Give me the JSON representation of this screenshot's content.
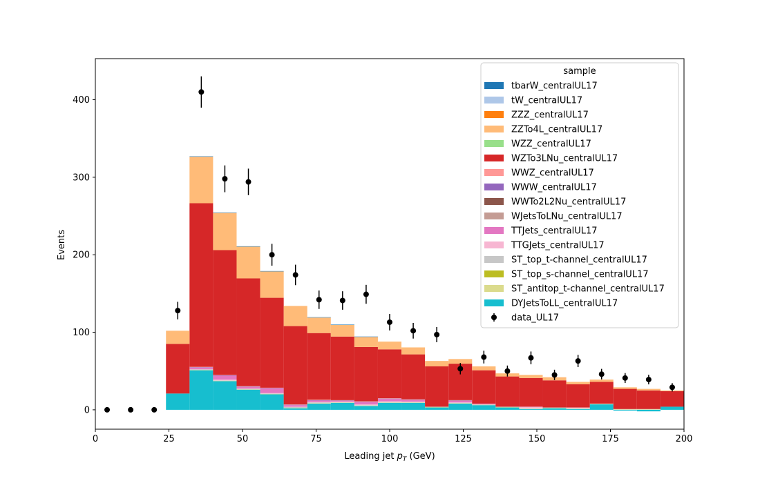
{
  "chart_data": {
    "type": "bar",
    "stacked": true,
    "xlabel": "Leading jet  p_T (GeV)",
    "xlabel_main": "Leading jet  ",
    "xlabel_p": "p",
    "xlabel_sub": "T",
    "xlabel_unit": " (GeV)",
    "ylabel": "Events",
    "xlim": [
      0,
      200
    ],
    "ylim": [
      -25,
      453
    ],
    "xticks": [
      0,
      25,
      50,
      75,
      100,
      125,
      150,
      175,
      200
    ],
    "yticks": [
      0,
      100,
      200,
      300,
      400
    ],
    "grid": false,
    "legend_placement": "top-right",
    "legend_title": "sample",
    "bin_edges": [
      24,
      32,
      40,
      48,
      56,
      64,
      72,
      80,
      88,
      96,
      104,
      112,
      120,
      128,
      136,
      144,
      152,
      160,
      168,
      176,
      184,
      192,
      200
    ],
    "series": [
      {
        "name": "tbarW_centralUL17",
        "color": "#1f77b4",
        "values": [
          0,
          0.5,
          0.5,
          0.5,
          0.5,
          0,
          0.5,
          0.5,
          0.5,
          0,
          0,
          0,
          0,
          0,
          0,
          0,
          0,
          0,
          0,
          0,
          0,
          0
        ]
      },
      {
        "name": "tW_centralUL17",
        "color": "#aec7e8",
        "values": [
          0,
          0,
          0,
          0,
          0,
          0,
          0,
          0,
          0,
          0,
          0,
          0,
          0,
          0,
          0,
          0,
          0,
          0,
          0,
          0,
          0,
          0
        ]
      },
      {
        "name": "ZZZ_centralUL17",
        "color": "#ff7f0e",
        "values": [
          0,
          0,
          0,
          0,
          0,
          0,
          0,
          0,
          0,
          0,
          0,
          0,
          0,
          0,
          0,
          0,
          0,
          0,
          0,
          0,
          0,
          0
        ]
      },
      {
        "name": "ZZTo4L_centralUL17",
        "color": "#ffbb78",
        "values": [
          17,
          60,
          48,
          41,
          34,
          26,
          20,
          15,
          13,
          10,
          9,
          7,
          6,
          5,
          4,
          4,
          4,
          3,
          3,
          2,
          2,
          1
        ]
      },
      {
        "name": "WZZ_centralUL17",
        "color": "#98df8a",
        "values": [
          0,
          0,
          0,
          0,
          0,
          0,
          0,
          0,
          0,
          0,
          0,
          0,
          0,
          0,
          0,
          0,
          0,
          0,
          0,
          0,
          0,
          0
        ]
      },
      {
        "name": "WZTo3LNu_centralUL17",
        "color": "#d62728",
        "values": [
          64,
          211,
          161,
          139,
          116,
          101,
          86,
          82,
          70,
          63,
          58,
          52,
          47,
          43,
          39,
          37,
          35,
          30,
          28,
          26,
          24,
          20
        ]
      },
      {
        "name": "WWZ_centralUL17",
        "color": "#ff9896",
        "values": [
          0,
          0.5,
          0.5,
          0.5,
          0.5,
          0.5,
          0.5,
          0.5,
          0.5,
          0.5,
          0.5,
          0,
          0.5,
          0,
          0,
          0,
          0,
          0,
          0,
          0,
          0,
          0
        ]
      },
      {
        "name": "WWW_centralUL17",
        "color": "#9467bd",
        "values": [
          0,
          0.5,
          0.5,
          0.5,
          0.5,
          0.5,
          0.5,
          0.5,
          0.5,
          0.5,
          0.5,
          0,
          0.5,
          0,
          0,
          0,
          0,
          0,
          0,
          0,
          0,
          0
        ]
      },
      {
        "name": "WWTo2L2Nu_centralUL17",
        "color": "#8c564b",
        "values": [
          0,
          0,
          0,
          0,
          0,
          0,
          0,
          0,
          0,
          0,
          0,
          0,
          0,
          0,
          0,
          0,
          0,
          0,
          0,
          0,
          0,
          0
        ]
      },
      {
        "name": "WJetsToLNu_centralUL17",
        "color": "#c49c94",
        "values": [
          0,
          0,
          0,
          0,
          0,
          0,
          0,
          0,
          0,
          0,
          0,
          0,
          0,
          0,
          0,
          0,
          0,
          0,
          0,
          0,
          0,
          0
        ]
      },
      {
        "name": "TTJets_centralUL17",
        "color": "#e377c2",
        "values": [
          0,
          2,
          5,
          2,
          6,
          2,
          2,
          1,
          3,
          3,
          2,
          0,
          2,
          1,
          0,
          0,
          0,
          0,
          0,
          0,
          0,
          0
        ]
      },
      {
        "name": "TTGJets_centralUL17",
        "color": "#f7b6d2",
        "values": [
          0,
          0.5,
          1,
          0.5,
          0.5,
          0.5,
          0.5,
          0.5,
          1,
          1,
          0.5,
          0,
          0.5,
          0,
          0,
          2,
          0,
          1,
          0,
          0,
          0,
          0
        ]
      },
      {
        "name": "ST_top_t-channel_centralUL17",
        "color": "#c7c7c7",
        "values": [
          0,
          0.5,
          0.5,
          0.5,
          0.5,
          1,
          1,
          0.5,
          0.5,
          0.5,
          0.5,
          0.5,
          0.5,
          0.5,
          0.5,
          0.5,
          0.5,
          0.5,
          0.5,
          0.5,
          0.5,
          0
        ]
      },
      {
        "name": "ST_top_s-channel_centralUL17",
        "color": "#bcbd22",
        "values": [
          0,
          0,
          0,
          0,
          0,
          0,
          0,
          0,
          0,
          0,
          0,
          0,
          0,
          0,
          0,
          0,
          0,
          0,
          0,
          0,
          0,
          0
        ]
      },
      {
        "name": "ST_antitop_t-channel_centralUL17",
        "color": "#dbdb8d",
        "values": [
          0,
          0.5,
          0.5,
          0.5,
          0.5,
          0.5,
          0.5,
          0.5,
          0.5,
          0.5,
          0.5,
          0.5,
          0.5,
          0.5,
          0.5,
          0.5,
          0.5,
          0.5,
          0.5,
          0.5,
          0.5,
          0
        ]
      },
      {
        "name": "DYJetsToLL_centralUL17",
        "color": "#17becf",
        "values": [
          21,
          51,
          37,
          26,
          20,
          2,
          8,
          9,
          5,
          9,
          9,
          3,
          8,
          6,
          3,
          1,
          2,
          1,
          7,
          -1,
          -2,
          4
        ]
      }
    ],
    "data": {
      "name": "data_UL17",
      "color": "#000000",
      "x": [
        4,
        12,
        20,
        28,
        36,
        44,
        52,
        60,
        68,
        76,
        84,
        92,
        100,
        108,
        116,
        124,
        132,
        140,
        148,
        156,
        164,
        172,
        180,
        188,
        196
      ],
      "y": [
        0,
        0,
        0,
        128,
        410,
        298,
        294,
        200,
        174,
        142,
        141,
        149,
        113,
        102,
        97,
        53,
        68,
        50,
        67,
        45,
        63,
        46,
        41,
        39,
        29
      ],
      "yerr": [
        0,
        0,
        0,
        11.3,
        20.2,
        17.3,
        17.1,
        14.1,
        13.2,
        11.9,
        11.9,
        12.2,
        10.6,
        10.1,
        9.8,
        7.3,
        8.2,
        7.1,
        8.2,
        6.7,
        7.9,
        6.8,
        6.4,
        6.2,
        5.4
      ]
    }
  }
}
